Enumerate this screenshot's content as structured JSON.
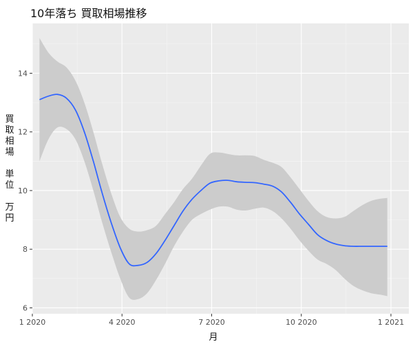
{
  "chart_data": {
    "type": "line",
    "title": "10年落ち 買取相場推移",
    "xlabel": "月",
    "ylabel": "買\n取\n相\n場\n\n単\n位\n\n万\n円",
    "xlim": [
      2020.0,
      2021.05
    ],
    "ylim": [
      5.8,
      15.7
    ],
    "x_ticks": [
      {
        "label": "1 2020",
        "value": 2020.0
      },
      {
        "label": "4 2020",
        "value": 2020.25
      },
      {
        "label": "7 2020",
        "value": 2020.5
      },
      {
        "label": "10 2020",
        "value": 2020.75
      },
      {
        "label": "1 2021",
        "value": 2021.0
      }
    ],
    "y_ticks": [
      6,
      8,
      10,
      12,
      14
    ],
    "grid": true,
    "series": [
      {
        "color": "#3366ff",
        "band_color": "#cccccc",
        "x": [
          2020.02,
          2020.045,
          2020.07,
          2020.095,
          2020.12,
          2020.145,
          2020.17,
          2020.195,
          2020.22,
          2020.245,
          2020.27,
          2020.295,
          2020.32,
          2020.345,
          2020.37,
          2020.395,
          2020.42,
          2020.445,
          2020.47,
          2020.495,
          2020.52,
          2020.545,
          2020.57,
          2020.595,
          2020.62,
          2020.645,
          2020.67,
          2020.695,
          2020.72,
          2020.745,
          2020.77,
          2020.795,
          2020.82,
          2020.845,
          2020.87,
          2020.895,
          2020.92,
          2020.945,
          2020.97,
          2020.99
        ],
        "y": [
          13.1,
          13.22,
          13.28,
          13.15,
          12.75,
          12.0,
          11.0,
          9.9,
          8.9,
          8.05,
          7.5,
          7.45,
          7.55,
          7.85,
          8.3,
          8.8,
          9.3,
          9.7,
          10.0,
          10.25,
          10.33,
          10.35,
          10.3,
          10.28,
          10.27,
          10.22,
          10.15,
          9.95,
          9.6,
          9.2,
          8.85,
          8.5,
          8.3,
          8.18,
          8.12,
          8.1,
          8.1,
          8.1,
          8.1,
          8.1
        ],
        "lower": [
          11.0,
          11.75,
          12.15,
          12.1,
          11.75,
          11.0,
          10.0,
          8.9,
          7.9,
          7.0,
          6.35,
          6.3,
          6.5,
          6.95,
          7.5,
          8.1,
          8.6,
          9.0,
          9.2,
          9.35,
          9.45,
          9.45,
          9.35,
          9.32,
          9.38,
          9.42,
          9.3,
          9.05,
          8.7,
          8.3,
          7.95,
          7.65,
          7.5,
          7.3,
          7.0,
          6.75,
          6.6,
          6.5,
          6.45,
          6.4
        ],
        "upper": [
          15.2,
          14.7,
          14.4,
          14.2,
          13.75,
          13.0,
          12.0,
          10.9,
          9.9,
          9.1,
          8.7,
          8.6,
          8.65,
          8.8,
          9.2,
          9.6,
          10.05,
          10.4,
          10.85,
          11.25,
          11.3,
          11.25,
          11.2,
          11.2,
          11.18,
          11.05,
          10.95,
          10.8,
          10.45,
          10.05,
          9.65,
          9.3,
          9.1,
          9.05,
          9.1,
          9.3,
          9.5,
          9.65,
          9.72,
          9.75
        ]
      }
    ]
  }
}
